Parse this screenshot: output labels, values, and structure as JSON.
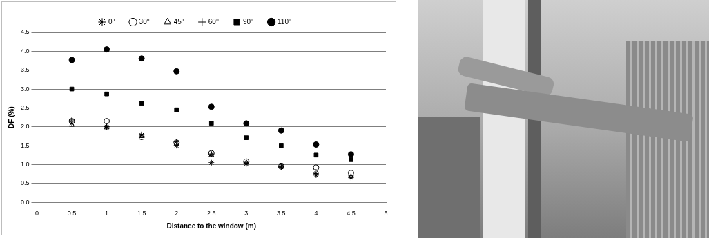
{
  "chart_data": {
    "type": "scatter",
    "x_label": "Distance to the window (m)",
    "y_label": "DF (%)",
    "xlim": [
      0,
      5
    ],
    "xticks": [
      0,
      0.5,
      1,
      1.5,
      2,
      2.5,
      3,
      3.5,
      4,
      4.5,
      5
    ],
    "ylim": [
      0,
      4.5
    ],
    "yticks": [
      {
        "value": 0,
        "label": "0.0"
      },
      {
        "value": 0.5,
        "label": "0.5"
      },
      {
        "value": 1,
        "label": "1.0"
      },
      {
        "value": 1.5,
        "label": "1.5"
      },
      {
        "value": 2,
        "label": "2.0"
      },
      {
        "value": 2.5,
        "label": "2.5"
      },
      {
        "value": 3,
        "label": "3.0"
      },
      {
        "value": 3.5,
        "label": "3.5"
      },
      {
        "value": 4,
        "label": "4.0"
      },
      {
        "value": 4.5,
        "label": "4.5"
      }
    ],
    "grid": "y",
    "legend": "top",
    "x": [
      0.5,
      1,
      1.5,
      2,
      2.5,
      3,
      3.5,
      4,
      4.5
    ],
    "series": [
      {
        "name": "0°",
        "color": "#000000",
        "marker": "star",
        "values": [
          2.1,
          2.0,
          1.78,
          1.5,
          1.05,
          1.02,
          0.95,
          0.72,
          0.65
        ]
      },
      {
        "name": "30°",
        "color": "#000000",
        "marker": "circle_open",
        "values": [
          2.15,
          2.15,
          1.73,
          1.58,
          1.3,
          1.08,
          0.95,
          0.92,
          0.78
        ]
      },
      {
        "name": "45°",
        "color": "#000000",
        "marker": "triangle_open",
        "values": [
          2.05,
          1.98,
          1.75,
          1.55,
          1.25,
          1.05,
          0.97,
          0.8,
          0.68
        ]
      },
      {
        "name": "60°",
        "color": "#000000",
        "marker": "plus",
        "values": [
          2.18,
          2.0,
          1.8,
          1.6,
          1.28,
          1.05,
          0.92,
          0.75,
          0.7
        ]
      },
      {
        "name": "90°",
        "color": "#000000",
        "marker": "square",
        "values": [
          3.0,
          2.87,
          2.62,
          2.45,
          2.09,
          1.71,
          1.5,
          1.25,
          1.13
        ]
      },
      {
        "name": "110°",
        "color": "#000000",
        "marker": "circle",
        "values": [
          3.77,
          4.05,
          3.81,
          3.47,
          2.53,
          2.09,
          1.9,
          1.53,
          1.27
        ]
      }
    ]
  }
}
